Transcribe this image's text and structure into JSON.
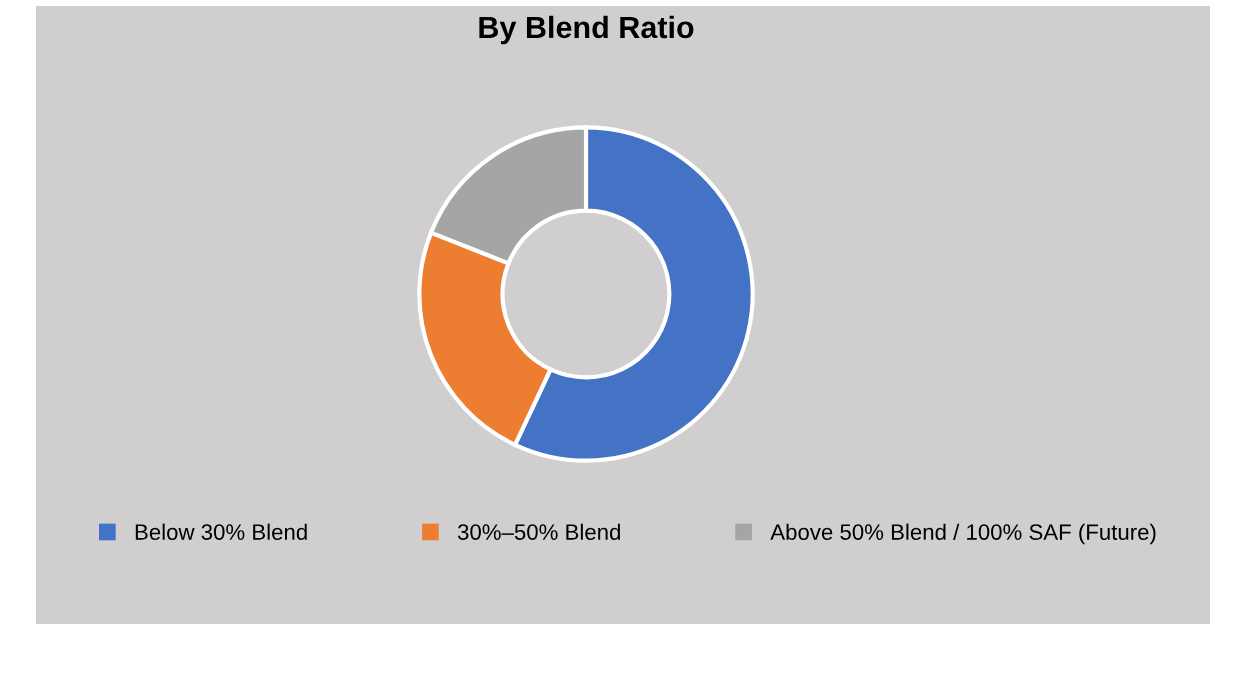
{
  "chart_data": {
    "type": "donut",
    "title": "By Blend Ratio",
    "categories": [
      "Below 30% Blend",
      "30%–50% Blend",
      "Above 50% Blend / 100% SAF (Future)"
    ],
    "values": [
      57,
      24,
      19
    ],
    "colors": [
      "#4472c4",
      "#ed7d31",
      "#a5a5a5"
    ],
    "legend": "bottom"
  }
}
